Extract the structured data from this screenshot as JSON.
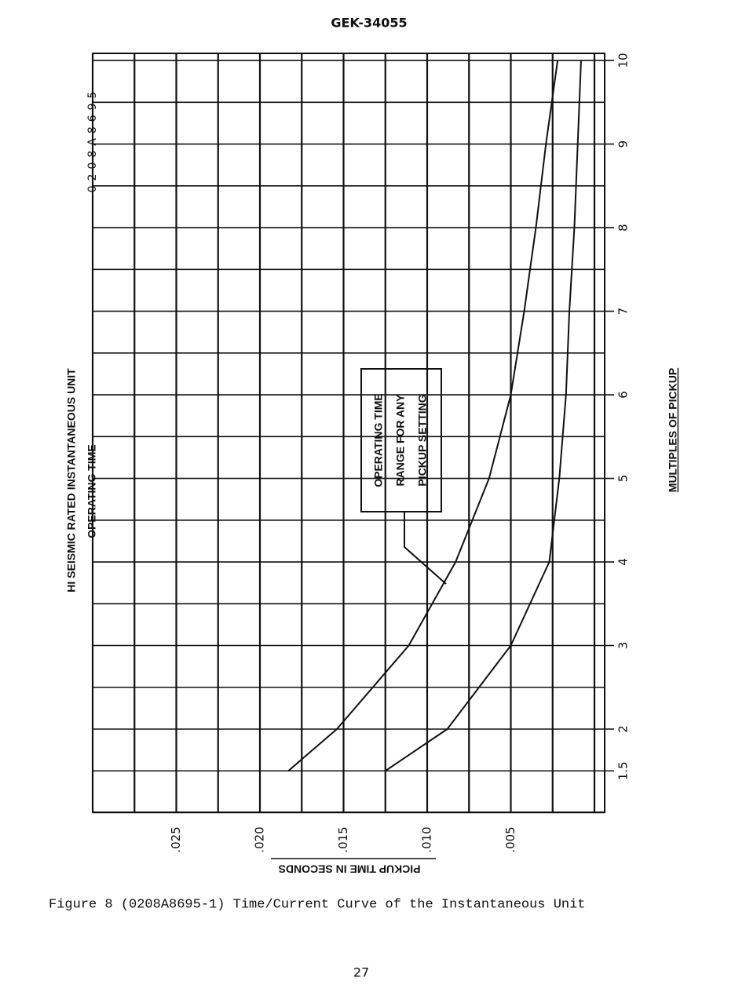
{
  "header": "GEK-34055",
  "chart_data": {
    "type": "line",
    "document_number": "0208A8695",
    "title": [
      "HI SEISMIC RATED INSTANTANEOUS UNIT",
      "OPERATING TIME"
    ],
    "xlabel": "PICKUP TIME IN SECONDS",
    "ylabel": "MULTIPLES OF PICKUP",
    "annotation": [
      "OPERATING TIME",
      "RANGE FOR ANY",
      "PICKUP SETTING"
    ],
    "xlim": [
      0.03,
      0
    ],
    "xticks": [
      {
        "value": 0.025,
        "label": ".025"
      },
      {
        "value": 0.02,
        "label": ".020"
      },
      {
        "value": 0.015,
        "label": ".015"
      },
      {
        "value": 0.01,
        "label": ".010"
      },
      {
        "value": 0.005,
        "label": ".005"
      }
    ],
    "ylim": [
      1,
      10.1
    ],
    "yticks": [
      1.5,
      2,
      3,
      4,
      5,
      6,
      7,
      8,
      9,
      10
    ],
    "grid": true,
    "x": [
      1.5,
      2,
      3,
      4,
      5,
      6,
      7,
      8,
      9,
      10
    ],
    "series": [
      {
        "color": "#111111",
        "values": [
          0.0183,
          0.0154,
          0.0111,
          0.0083,
          0.0063,
          0.005,
          0.0042,
          0.0035,
          0.0029,
          0.0022
        ]
      },
      {
        "color": "#111111",
        "values": [
          0.0125,
          0.0088,
          0.005,
          0.0027,
          0.0021,
          0.0017,
          0.0015,
          0.0012,
          0.001,
          0.0008
        ]
      }
    ]
  },
  "caption": "Figure 8  (0208A8695-1) Time/Current Curve of the Instantaneous Unit",
  "page_number": "27"
}
